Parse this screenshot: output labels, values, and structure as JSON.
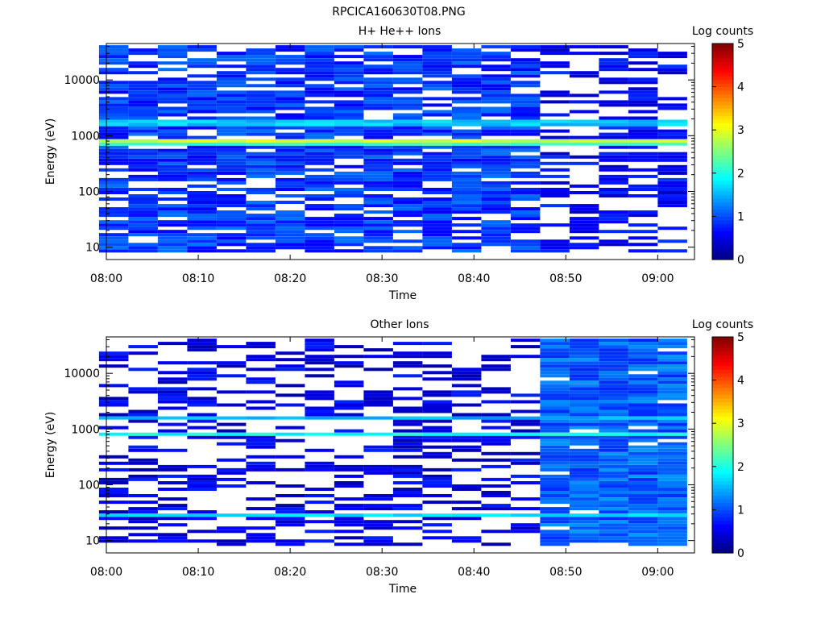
{
  "figure_title": "RPCICA160630T08.PNG",
  "colors": {
    "background": "#ffffff",
    "axes": "#000000",
    "colormap": [
      "#00008f",
      "#0000ff",
      "#00ffff",
      "#ffff00",
      "#ff0000",
      "#800000"
    ]
  },
  "chart_data": [
    {
      "type": "heatmap",
      "title": "H+ He++ Ions",
      "xlabel": "Time",
      "ylabel": "Energy (eV)",
      "x_ticks": [
        "08:00",
        "08:10",
        "08:20",
        "08:30",
        "08:40",
        "08:50",
        "09:00"
      ],
      "y_ticks": [
        "10",
        "100",
        "1000",
        "10000"
      ],
      "y_scale": "log",
      "ylim": [
        6,
        45000
      ],
      "xlim_minutes": [
        0,
        64
      ],
      "colorbar": {
        "label": "Log counts",
        "ticks": [
          "0",
          "1",
          "2",
          "3",
          "4",
          "5"
        ],
        "range": [
          0,
          5
        ]
      },
      "time_columns_minutes": [
        0.8,
        4,
        7.2,
        10.4,
        13.6,
        16.8,
        20,
        23.2,
        26.4,
        29.6,
        32.8,
        36,
        39.2,
        42.4,
        45.6,
        48.8,
        52,
        55.2,
        58.4,
        61.6
      ],
      "bands": [
        {
          "energy_ev": 1700,
          "level": 1.6,
          "columns": "all"
        },
        {
          "energy_ev": 800,
          "level": 2.9,
          "columns": "all"
        },
        {
          "energy_ev": 720,
          "level": 2.2,
          "columns": "all"
        }
      ],
      "background_level_before_0850": 0.6,
      "background_level_after_0850": 0.3
    },
    {
      "type": "heatmap",
      "title": "Other Ions",
      "xlabel": "Time",
      "ylabel": "Energy (eV)",
      "x_ticks": [
        "08:00",
        "08:10",
        "08:20",
        "08:30",
        "08:40",
        "08:50",
        "09:00"
      ],
      "y_ticks": [
        "10",
        "100",
        "1000",
        "10000"
      ],
      "y_scale": "log",
      "ylim": [
        6,
        45000
      ],
      "xlim_minutes": [
        0,
        64
      ],
      "colorbar": {
        "label": "Log counts",
        "ticks": [
          "0",
          "1",
          "2",
          "3",
          "4",
          "5"
        ],
        "range": [
          0,
          5
        ]
      },
      "time_columns_minutes": [
        0.8,
        4,
        7.2,
        10.4,
        13.6,
        16.8,
        20,
        23.2,
        26.4,
        29.6,
        32.8,
        36,
        39.2,
        42.4,
        45.6,
        48.8,
        52,
        55.2,
        58.4,
        61.6
      ],
      "bands": [
        {
          "energy_ev": 1650,
          "level": 1.5,
          "columns": "all"
        },
        {
          "energy_ev": 820,
          "level": 1.9,
          "columns": "all"
        },
        {
          "energy_ev": 28,
          "level": 1.8,
          "columns": "all"
        }
      ],
      "background_level_before_0850": 0.2,
      "background_level_after_0850": 0.8
    }
  ]
}
